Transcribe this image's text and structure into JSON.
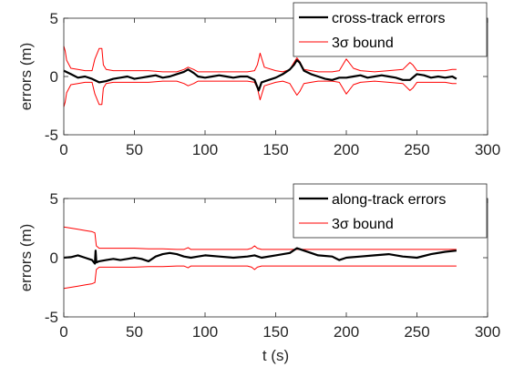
{
  "chart_data": [
    {
      "type": "line",
      "xlabel": "",
      "ylabel": "errors (m)",
      "xlim": [
        0,
        300
      ],
      "ylim": [
        -5,
        5
      ],
      "xticks": [
        "0",
        "50",
        "100",
        "150",
        "200",
        "250",
        "300"
      ],
      "yticks": [
        "-5",
        "0",
        "5"
      ],
      "grid": false,
      "legend_position": "top-right",
      "series": [
        {
          "name": "cross-track errors",
          "color": "#000000",
          "x": [
            0,
            5,
            10,
            15,
            20,
            25,
            30,
            35,
            40,
            45,
            50,
            55,
            60,
            65,
            70,
            75,
            80,
            85,
            88,
            92,
            95,
            100,
            105,
            110,
            115,
            120,
            125,
            130,
            135,
            138,
            140,
            145,
            150,
            155,
            160,
            163,
            165,
            167,
            170,
            175,
            180,
            185,
            190,
            195,
            200,
            205,
            210,
            215,
            220,
            225,
            230,
            235,
            240,
            245,
            250,
            255,
            260,
            265,
            270,
            275,
            278
          ],
          "values": [
            0.5,
            0.2,
            -0.1,
            0.0,
            -0.2,
            -0.5,
            -0.4,
            -0.2,
            -0.1,
            0.0,
            -0.2,
            -0.1,
            0.0,
            0.1,
            -0.1,
            0.0,
            0.2,
            0.4,
            0.6,
            0.3,
            0.0,
            -0.1,
            0.0,
            0.1,
            0.0,
            -0.1,
            0.0,
            0.0,
            -0.3,
            -1.2,
            -0.5,
            -0.3,
            -0.1,
            0.2,
            0.6,
            1.0,
            1.4,
            1.2,
            0.5,
            0.2,
            0.0,
            -0.2,
            -0.3,
            -0.1,
            -0.1,
            0.0,
            0.1,
            -0.1,
            0.0,
            0.1,
            0.0,
            -0.1,
            -0.3,
            -0.3,
            0.2,
            0.1,
            -0.1,
            0.0,
            -0.1,
            0.0,
            -0.2
          ]
        },
        {
          "name": "3σ bound",
          "color": "#ff0000",
          "x": [
            0,
            1,
            2,
            5,
            10,
            15,
            20,
            22,
            25,
            27,
            28,
            30,
            35,
            40,
            45,
            50,
            60,
            70,
            75,
            80,
            85,
            88,
            92,
            95,
            100,
            110,
            120,
            130,
            135,
            137,
            139,
            142,
            150,
            155,
            160,
            163,
            165,
            167,
            170,
            175,
            180,
            190,
            195,
            200,
            205,
            210,
            220,
            230,
            240,
            245,
            247,
            250,
            260,
            270,
            275,
            278
          ],
          "values": [
            2.6,
            2.2,
            1.4,
            0.7,
            0.6,
            0.5,
            0.5,
            1.5,
            2.4,
            2.4,
            1.0,
            0.6,
            0.5,
            0.5,
            0.5,
            0.5,
            0.5,
            0.4,
            0.4,
            0.4,
            0.6,
            0.8,
            0.6,
            0.4,
            0.4,
            0.4,
            0.4,
            0.4,
            0.5,
            1.0,
            2.0,
            0.8,
            0.5,
            0.4,
            0.6,
            1.2,
            1.6,
            1.3,
            0.6,
            0.5,
            0.4,
            0.4,
            0.5,
            1.5,
            0.7,
            0.5,
            0.4,
            0.5,
            0.6,
            1.2,
            1.0,
            0.5,
            0.5,
            0.5,
            0.6,
            0.6
          ]
        }
      ]
    },
    {
      "type": "line",
      "xlabel": "t (s)",
      "ylabel": "errors (m)",
      "xlim": [
        0,
        300
      ],
      "ylim": [
        -5,
        5
      ],
      "xticks": [
        "0",
        "50",
        "100",
        "150",
        "200",
        "250",
        "300"
      ],
      "yticks": [
        "-5",
        "0",
        "5"
      ],
      "grid": false,
      "legend_position": "top-right",
      "series": [
        {
          "name": "along-track errors",
          "color": "#000000",
          "x": [
            0,
            5,
            10,
            15,
            20,
            22,
            22.5,
            23,
            25,
            30,
            35,
            40,
            45,
            50,
            55,
            60,
            65,
            70,
            75,
            80,
            85,
            90,
            95,
            100,
            110,
            120,
            130,
            135,
            140,
            150,
            160,
            165,
            170,
            175,
            180,
            190,
            195,
            200,
            210,
            220,
            230,
            240,
            250,
            260,
            270,
            278
          ],
          "values": [
            0.0,
            0.05,
            0.2,
            0.0,
            -0.2,
            -0.5,
            0.6,
            -0.4,
            -0.3,
            -0.2,
            -0.1,
            -0.2,
            -0.1,
            0.0,
            -0.1,
            -0.3,
            0.1,
            0.3,
            0.4,
            0.3,
            0.1,
            0.0,
            0.1,
            0.2,
            0.1,
            0.0,
            0.1,
            0.2,
            0.0,
            0.2,
            0.4,
            0.8,
            0.6,
            0.4,
            0.2,
            0.1,
            -0.2,
            0.0,
            0.1,
            0.2,
            0.3,
            0.1,
            0.0,
            0.3,
            0.5,
            0.6
          ]
        },
        {
          "name": "3σ bound",
          "color": "#ff0000",
          "x": [
            0,
            5,
            10,
            15,
            20,
            22,
            23,
            25,
            30,
            40,
            50,
            60,
            70,
            80,
            85,
            88,
            90,
            100,
            110,
            120,
            130,
            133,
            135,
            137,
            140,
            150,
            160,
            170,
            180,
            190,
            200,
            210,
            220,
            230,
            240,
            250,
            260,
            270,
            278
          ],
          "values": [
            2.6,
            2.5,
            2.4,
            2.3,
            2.2,
            2.1,
            1.0,
            0.8,
            0.8,
            0.8,
            0.8,
            0.75,
            0.75,
            0.7,
            0.7,
            0.85,
            0.7,
            0.7,
            0.7,
            0.7,
            0.7,
            0.8,
            1.0,
            0.8,
            0.7,
            0.7,
            0.7,
            0.7,
            0.7,
            0.7,
            0.7,
            0.7,
            0.7,
            0.7,
            0.7,
            0.7,
            0.7,
            0.7,
            0.7
          ]
        }
      ]
    }
  ]
}
